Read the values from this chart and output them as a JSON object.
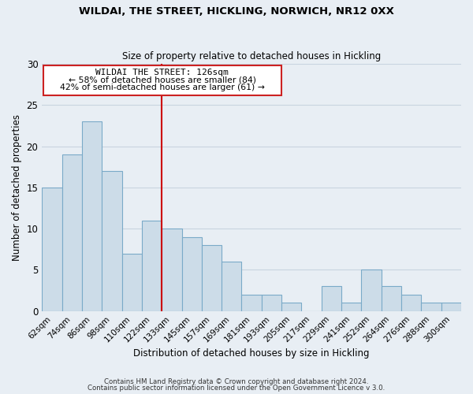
{
  "title": "WILDAI, THE STREET, HICKLING, NORWICH, NR12 0XX",
  "subtitle": "Size of property relative to detached houses in Hickling",
  "xlabel": "Distribution of detached houses by size in Hickling",
  "ylabel": "Number of detached properties",
  "bar_color": "#ccdce8",
  "bar_edge_color": "#7aaac8",
  "categories": [
    "62sqm",
    "74sqm",
    "86sqm",
    "98sqm",
    "110sqm",
    "122sqm",
    "133sqm",
    "145sqm",
    "157sqm",
    "169sqm",
    "181sqm",
    "193sqm",
    "205sqm",
    "217sqm",
    "229sqm",
    "241sqm",
    "252sqm",
    "264sqm",
    "276sqm",
    "288sqm",
    "300sqm"
  ],
  "values": [
    15,
    19,
    23,
    17,
    7,
    11,
    10,
    9,
    8,
    6,
    2,
    2,
    1,
    0,
    3,
    1,
    5,
    3,
    2,
    1,
    1
  ],
  "ylim": [
    0,
    30
  ],
  "yticks": [
    0,
    5,
    10,
    15,
    20,
    25,
    30
  ],
  "vline_x": 6.0,
  "vline_color": "#cc0000",
  "annotation_title": "WILDAI THE STREET: 126sqm",
  "annotation_line1": "← 58% of detached houses are smaller (84)",
  "annotation_line2": "42% of semi-detached houses are larger (61) →",
  "footer1": "Contains HM Land Registry data © Crown copyright and database right 2024.",
  "footer2": "Contains public sector information licensed under the Open Government Licence v 3.0.",
  "background_color": "#e8eef4",
  "grid_color": "#c8d4e0"
}
